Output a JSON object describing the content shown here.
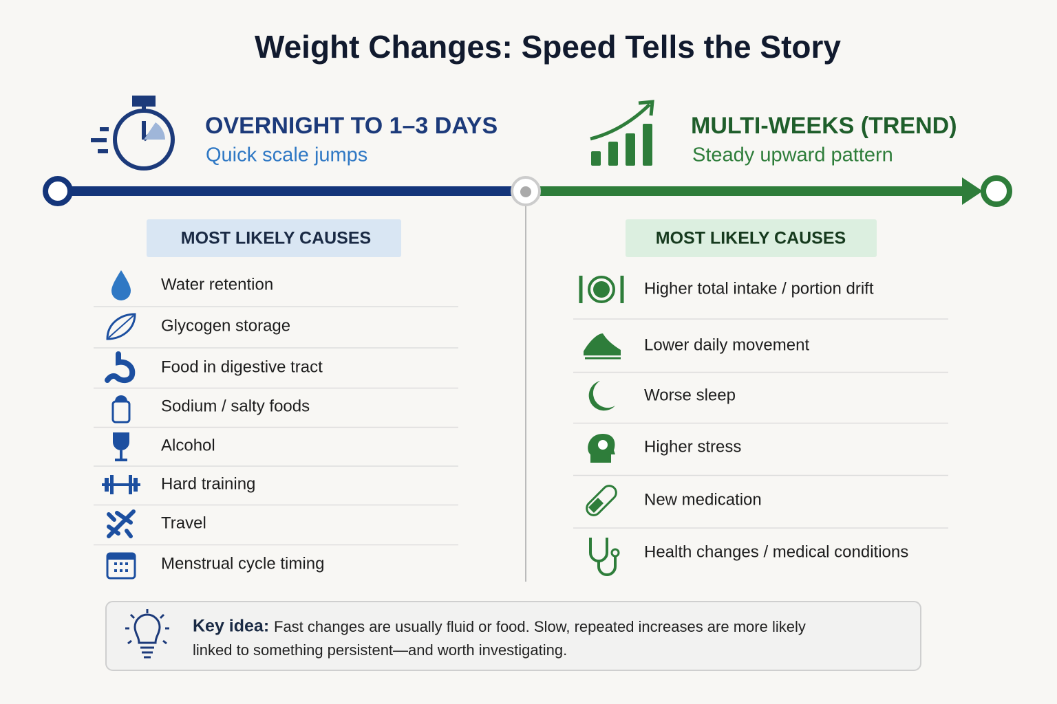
{
  "title": "Weight Changes: Speed Tells the Story",
  "left": {
    "heading": "OVERNIGHT TO 1–3 DAYS",
    "subheading": "Quick scale jumps",
    "causes_label": "MOST LIKELY CAUSES",
    "items": [
      "Water retention",
      "Glycogen storage",
      "Food in digestive tract",
      "Sodium / salty foods",
      "Alcohol",
      "Hard training",
      "Travel",
      "Menstrual cycle timing"
    ]
  },
  "right": {
    "heading": "MULTI-WEEKS (TREND)",
    "subheading": "Steady upward pattern",
    "causes_label": "MOST LIKELY CAUSES",
    "items": [
      "Higher total intake / portion drift",
      "Lower daily movement",
      "Worse sleep",
      "Higher stress",
      "New medication",
      "Health changes / medical conditions"
    ]
  },
  "key_idea": {
    "label": "Key idea:",
    "lines": [
      "Fast changes are usually fluid or food.  Slow, repeated increases are more likely",
      "linked to something persistent—and worth investigating."
    ]
  }
}
